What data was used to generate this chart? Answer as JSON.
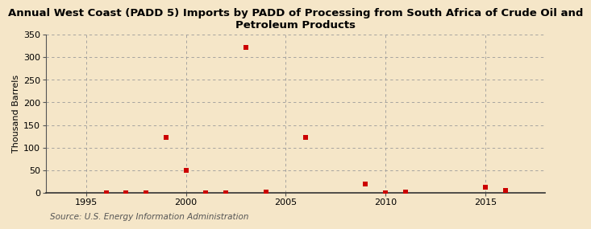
{
  "title": "Annual West Coast (PADD 5) Imports by PADD of Processing from South Africa of Crude Oil and\nPetroleum Products",
  "ylabel": "Thousand Barrels",
  "source": "Source: U.S. Energy Information Administration",
  "background_color": "#f5e6c8",
  "plot_background": "#f5e6c8",
  "xlim": [
    1993,
    2018
  ],
  "ylim": [
    0,
    350
  ],
  "yticks": [
    0,
    50,
    100,
    150,
    200,
    250,
    300,
    350
  ],
  "xticks": [
    1995,
    2000,
    2005,
    2010,
    2015
  ],
  "years": [
    1996,
    1997,
    1998,
    1999,
    2000,
    2001,
    2002,
    2003,
    2004,
    2006,
    2009,
    2010,
    2011,
    2015,
    2016
  ],
  "values": [
    1,
    1,
    1,
    122,
    50,
    1,
    1,
    321,
    2,
    122,
    19,
    1,
    2,
    12,
    5
  ],
  "marker_color": "#cc0000",
  "marker_size": 5,
  "grid_color": "#999999",
  "title_fontsize": 9.5,
  "axis_fontsize": 8,
  "tick_fontsize": 8,
  "source_fontsize": 7.5
}
